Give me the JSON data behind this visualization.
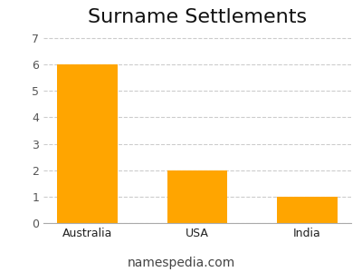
{
  "title": "Surname Settlements",
  "categories": [
    "Australia",
    "USA",
    "India"
  ],
  "values": [
    6,
    2,
    1
  ],
  "bar_color": "#FFA500",
  "ylim": [
    0,
    7.2
  ],
  "yticks": [
    0,
    1,
    2,
    3,
    4,
    5,
    6,
    7
  ],
  "grid_color": "#cccccc",
  "background_color": "#ffffff",
  "footer_text": "namespedia.com",
  "title_fontsize": 16,
  "tick_fontsize": 9,
  "footer_fontsize": 10,
  "bar_width": 0.55
}
